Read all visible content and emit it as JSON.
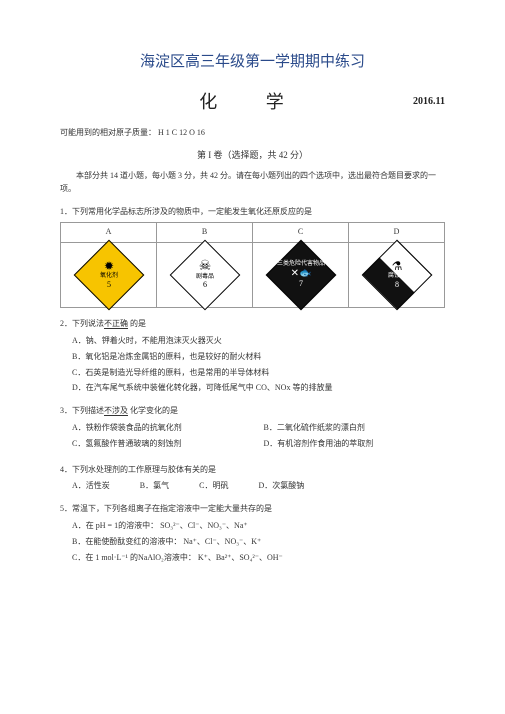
{
  "header": {
    "main_title": "海淀区高三年级第一学期期中练习",
    "subject": "化  学",
    "date": "2016.11",
    "mass_line": "可能用到的相对原子质量：   H 1    C 12    O 16",
    "section_label": "第 I 卷（选择题，共 42 分）",
    "intro": "本部分共 14 道小题，每小题 3 分，共 42 分。请在每小题列出的四个选项中，选出最符合题目要求的一项。"
  },
  "q1": {
    "stem": "1．下列常用化学品标志所涉及的物质中，一定能发生氧化还原反应的是",
    "cols": [
      "A",
      "B",
      "C",
      "D"
    ],
    "cells": {
      "a": {
        "label": "氧化剂",
        "num": "5",
        "bg": "d-yellow",
        "icon": "flame"
      },
      "b": {
        "label": "剧毒品",
        "num": "6",
        "bg": "d-white",
        "icon": "skull"
      },
      "c": {
        "label": "三类危险代害物品",
        "num": "7",
        "bg": "d-black",
        "icon": "fish"
      },
      "d": {
        "label": "腐蚀品",
        "num": "8",
        "bg": "d-black",
        "icon": "tube"
      }
    }
  },
  "q2": {
    "stem": "2．下列说法不正确 的是",
    "opts": {
      "A": "A．钠、钾着火时，不能用泡沫灭火器灭火",
      "B": "B．氧化铝是冶炼金属铝的原料，也是较好的耐火材料",
      "C": "C．石英是制造光导纤维的原料，也是常用的半导体材料",
      "D": "D．在汽车尾气系统中装催化转化器，可降低尾气中      CO、NOx 等的排放量"
    }
  },
  "q3": {
    "stem": "3．下列描述不涉及 化学变化的是",
    "opts": {
      "A": "A．铁粉作袋装食品的抗氧化剂",
      "B": "B．二氧化硫作纸浆的漂白剂",
      "C": "C．氢氟酸作普通玻璃的刻蚀剂",
      "D": "D．有机溶剂作食用油的萃取剂"
    }
  },
  "q4": {
    "stem": "4．下列水处理剂的工作原理与胶体有关的是",
    "opts": {
      "A": "A．活性炭",
      "B": "B．氯气",
      "C": "C．明矾",
      "D": "D．次氯酸钠"
    }
  },
  "q5": {
    "stem": "5．常温下，下列各组离子在指定溶液中一定能大量共存的是",
    "opts": {
      "A": "A．在 pH = 1的溶液中：  SO₃²⁻、Cl⁻、NO₃⁻、Na⁺",
      "B": "B．在能使酚酞变红的溶液中：  Na⁺、Cl⁻、NO₃⁻、K⁺",
      "C": "C．在 1 mol·L⁻¹ 的NaAlO₂溶液中：  K⁺、Ba²⁺、SO₄²⁻、OH⁻"
    }
  }
}
